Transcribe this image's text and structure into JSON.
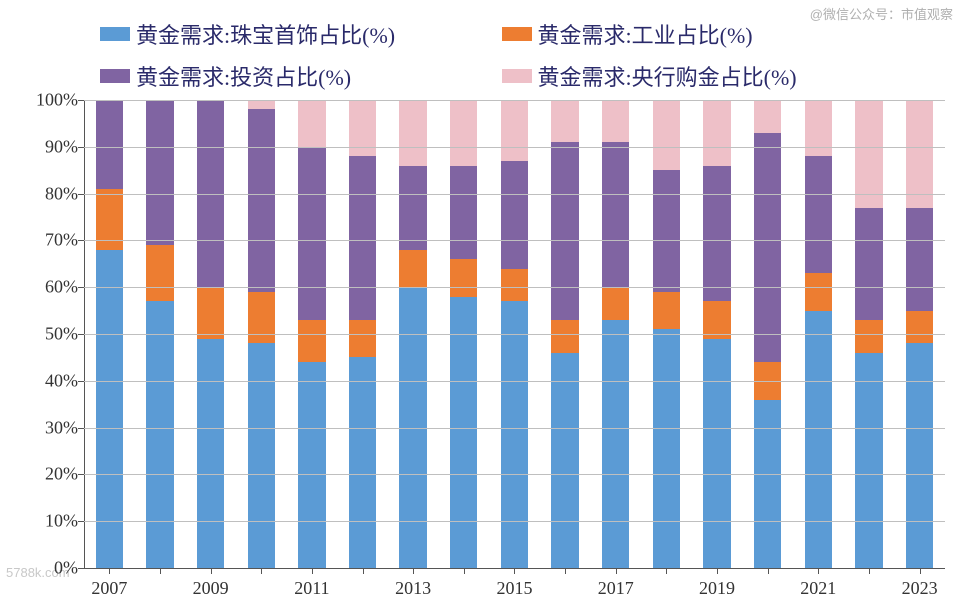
{
  "watermark": "@微信公众号：市值观察",
  "sitemark": "5788k.com",
  "legend": {
    "items": [
      {
        "label": "黄金需求:珠宝首饰占比(%)",
        "color": "#5b9bd5"
      },
      {
        "label": "黄金需求:工业占比(%)",
        "color": "#ed7d31"
      },
      {
        "label": "黄金需求:投资占比(%)",
        "color": "#8064a2"
      },
      {
        "label": "黄金需求:央行购金占比(%)",
        "color": "#eec0c8"
      }
    ],
    "fontsize": 22,
    "text_color": "#2a2a6a"
  },
  "chart": {
    "type": "stacked-bar",
    "background_color": "#ffffff",
    "grid_color": "#bfbfbf",
    "axis_color": "#555555",
    "ylim": [
      0,
      100
    ],
    "ytick_step": 10,
    "ytick_suffix": "%",
    "bar_width_ratio": 0.54,
    "years": [
      "2007",
      "2008",
      "2009",
      "2010",
      "2011",
      "2012",
      "2013",
      "2014",
      "2015",
      "2016",
      "2017",
      "2018",
      "2019",
      "2020",
      "2021",
      "2022",
      "2023"
    ],
    "x_labels_shown": [
      "2007",
      "2009",
      "2011",
      "2013",
      "2015",
      "2017",
      "2019",
      "2021",
      "2023"
    ],
    "series_order": [
      "jewelry",
      "industrial",
      "investment",
      "central_bank"
    ],
    "series_colors": {
      "jewelry": "#5b9bd5",
      "industrial": "#ed7d31",
      "investment": "#8064a2",
      "central_bank": "#eec0c8"
    },
    "data": {
      "2007": {
        "jewelry": 68,
        "industrial": 13,
        "investment": 19,
        "central_bank": 0
      },
      "2008": {
        "jewelry": 57,
        "industrial": 12,
        "investment": 31,
        "central_bank": 0
      },
      "2009": {
        "jewelry": 49,
        "industrial": 11,
        "investment": 40,
        "central_bank": 0
      },
      "2010": {
        "jewelry": 48,
        "industrial": 11,
        "investment": 39,
        "central_bank": 2
      },
      "2011": {
        "jewelry": 44,
        "industrial": 9,
        "investment": 37,
        "central_bank": 10
      },
      "2012": {
        "jewelry": 45,
        "industrial": 8,
        "investment": 35,
        "central_bank": 12
      },
      "2013": {
        "jewelry": 60,
        "industrial": 8,
        "investment": 18,
        "central_bank": 14
      },
      "2014": {
        "jewelry": 58,
        "industrial": 8,
        "investment": 20,
        "central_bank": 14
      },
      "2015": {
        "jewelry": 57,
        "industrial": 7,
        "investment": 23,
        "central_bank": 13
      },
      "2016": {
        "jewelry": 46,
        "industrial": 7,
        "investment": 38,
        "central_bank": 9
      },
      "2017": {
        "jewelry": 53,
        "industrial": 7,
        "investment": 31,
        "central_bank": 9
      },
      "2018": {
        "jewelry": 51,
        "industrial": 8,
        "investment": 26,
        "central_bank": 15
      },
      "2019": {
        "jewelry": 49,
        "industrial": 8,
        "investment": 29,
        "central_bank": 14
      },
      "2020": {
        "jewelry": 36,
        "industrial": 8,
        "investment": 49,
        "central_bank": 7
      },
      "2021": {
        "jewelry": 55,
        "industrial": 8,
        "investment": 25,
        "central_bank": 12
      },
      "2022": {
        "jewelry": 46,
        "industrial": 7,
        "investment": 24,
        "central_bank": 23
      },
      "2023": {
        "jewelry": 48,
        "industrial": 7,
        "investment": 22,
        "central_bank": 23
      }
    },
    "tick_fontsize": 18
  }
}
